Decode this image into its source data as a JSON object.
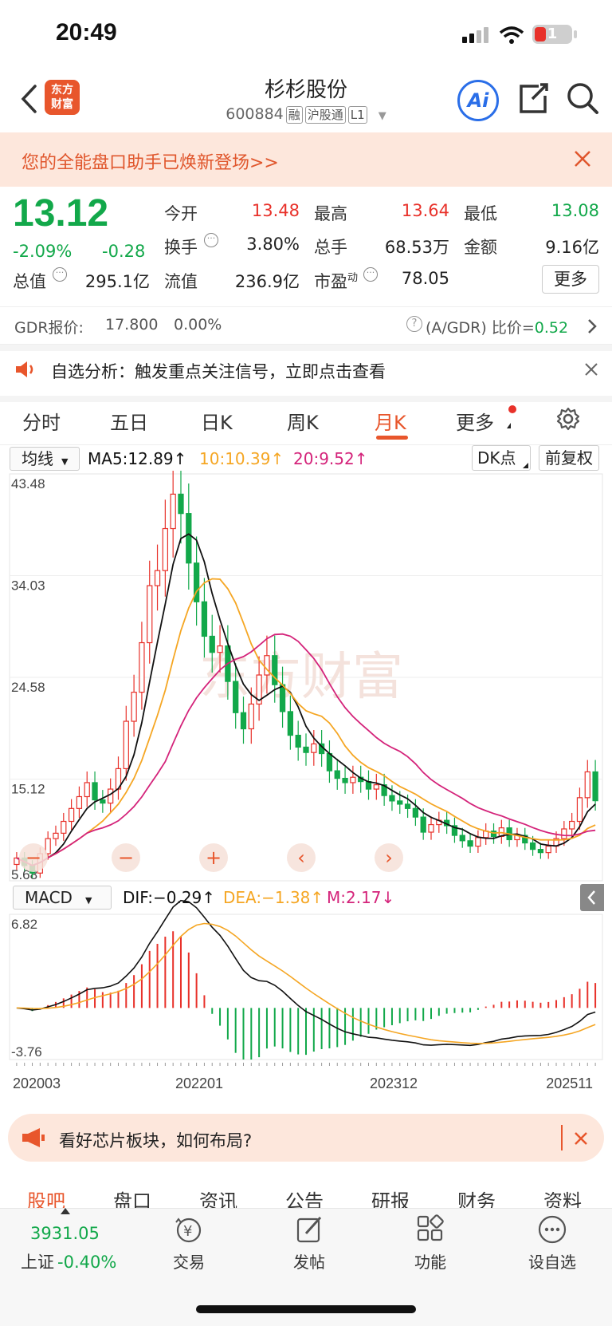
{
  "status_bar": {
    "time": "20:49",
    "battery": "1"
  },
  "header": {
    "back_icon": "chevron-left-icon",
    "logo_text": "东方\n财富",
    "stock_name": "杉杉股份",
    "stock_code": "600884",
    "tags": [
      "融",
      "沪股通",
      "L1"
    ],
    "ai_icon": "ai-icon",
    "share_icon": "share-icon",
    "search_icon": "search-icon"
  },
  "banner": {
    "text": "您的全能盘口助手已焕新登场>>"
  },
  "quote": {
    "price": "13.12",
    "change_pct": "-2.09%",
    "change": "-0.28",
    "open_label": "今开",
    "open": "13.48",
    "high_label": "最高",
    "high": "13.64",
    "low_label": "最低",
    "low": "13.08",
    "turnover_label": "换手",
    "turnover": "3.80%",
    "volume_label": "总手",
    "volume": "68.53万",
    "amount_label": "金额",
    "amount": "9.16亿",
    "mktcap_label": "总值",
    "mktcap": "295.1亿",
    "float_label": "流值",
    "float": "236.9亿",
    "pe_label": "市盈",
    "pe_sup": "动",
    "pe": "78.05",
    "more_label": "更多"
  },
  "gdr": {
    "label": "GDR报价:",
    "price": "17.800",
    "pct": "0.00%",
    "ratio_label": "(A/GDR) 比价=",
    "ratio": "0.52"
  },
  "notice": {
    "text": "自选分析：触发重点关注信号，立即点击查看"
  },
  "period_tabs": [
    "分时",
    "五日",
    "日K",
    "周K",
    "月K",
    "更多"
  ],
  "active_tab": "月K",
  "chart_toolbar": {
    "ma_select": "均线",
    "ma5": "MA5:12.89↑",
    "ma10": "10:10.39↑",
    "ma20": "20:9.52↑",
    "dk": "DK点",
    "adjust": "前复权"
  },
  "macd_toolbar": {
    "select": "MACD",
    "dif": "DIF:−0.29↑",
    "dea": "DEA:−1.38↑",
    "m": "M:2.17↓"
  },
  "colors": {
    "up": "#e8312a",
    "down": "#12a84a",
    "ma5": "#111111",
    "ma10": "#f5a623",
    "ma20": "#d4237a",
    "accent": "#e8562c"
  },
  "chart_data": [
    {
      "type": "candlestick",
      "price_ticks": [
        "43.48",
        "34.03",
        "24.58",
        "15.12",
        "5.68"
      ],
      "ylim": [
        5.68,
        43.48
      ],
      "x_ticks": [
        "202003",
        "202201",
        "202312",
        "202511"
      ],
      "series": [
        {
          "name": "MA5",
          "last": 12.89
        },
        {
          "name": "10",
          "last": 10.39
        },
        {
          "name": "20",
          "last": 9.52
        }
      ],
      "close_approx": [
        7.8,
        7.1,
        6.4,
        8.2,
        9.6,
        10.1,
        11.2,
        12.4,
        13.5,
        14.8,
        13.2,
        12.9,
        14.2,
        16.1,
        20.5,
        23.2,
        27.8,
        33.1,
        34.5,
        38.4,
        41.6,
        39.8,
        35.2,
        31.6,
        28.4,
        26.9,
        27.5,
        24.2,
        21.3,
        19.8,
        22.1,
        24.8,
        26.6,
        23.9,
        21.4,
        19.2,
        18.1,
        17.6,
        18.4,
        17.5,
        15.9,
        15.2,
        14.8,
        15.3,
        14.9,
        14.2,
        14.6,
        13.6,
        13.1,
        12.8,
        12.4,
        11.6,
        10.2,
        10.9,
        11.3,
        10.8,
        9.9,
        9.4,
        8.9,
        9.7,
        10.3,
        9.8,
        10.6,
        9.5,
        9.9,
        9.2,
        8.6,
        8.3,
        8.9,
        9.6,
        10.5,
        11.2,
        13.4,
        15.8,
        13.12
      ]
    },
    {
      "type": "bar",
      "name": "MACD",
      "yticks": [
        "6.82",
        "-3.76"
      ],
      "ylim": [
        -3.76,
        6.82
      ]
    }
  ],
  "bottom_banner": {
    "text": "看好芯片板块，如何布局?"
  },
  "bottom_tabs": [
    "股吧",
    "盘口",
    "资讯",
    "公告",
    "研报",
    "财务",
    "资料"
  ],
  "bottom_nav": {
    "index_value": "3931.05",
    "index_label": "上证",
    "index_pct": "-0.40%",
    "items": [
      "交易",
      "发帖",
      "功能",
      "设自选"
    ]
  }
}
